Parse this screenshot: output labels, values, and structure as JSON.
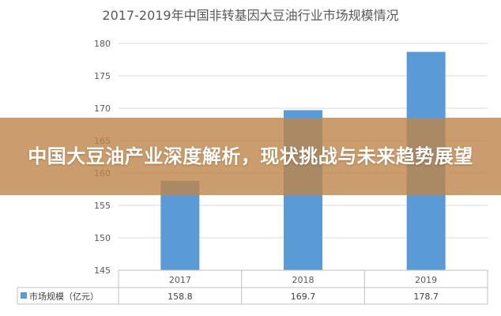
{
  "chart_data": {
    "type": "bar",
    "title": "2017-2019年中国非转基因大豆油行业市场规模情况",
    "categories": [
      "2017",
      "2018",
      "2019"
    ],
    "series": [
      {
        "name": "市场规模（亿元）",
        "values": [
          158.8,
          169.7,
          178.7
        ]
      }
    ],
    "ylim": [
      145,
      180
    ],
    "yticks": [
      145,
      150,
      155,
      160,
      165,
      170,
      175,
      180
    ],
    "grid": true,
    "legend": "data-table",
    "table_values": [
      "158.8",
      "169.7",
      "178.7"
    ],
    "bar_color": "#5b9bd5"
  },
  "banner": {
    "text": "中国大豆油产业深度解析，现状挑战与未来趋势展望",
    "color": "#be8448"
  }
}
